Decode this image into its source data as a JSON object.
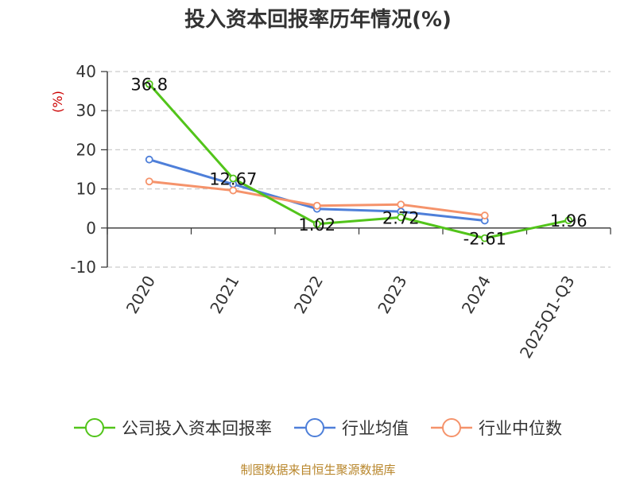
{
  "chart_data": {
    "type": "line",
    "title": "投入资本回报率历年情况(%)",
    "ylabel": "(%)",
    "xlabel": "",
    "categories": [
      "2020",
      "2021",
      "2022",
      "2023",
      "2024",
      "2025Q1-Q3"
    ],
    "ylim": [
      -10,
      40
    ],
    "yticks": [
      -10,
      0,
      10,
      20,
      30,
      40
    ],
    "grid": true,
    "legend_position": "bottom",
    "series": [
      {
        "name": "公司投入资本回报率",
        "color": "#52c41a",
        "values": [
          36.8,
          12.67,
          1.02,
          2.72,
          -2.61,
          1.96
        ],
        "labels": [
          "36.8",
          "12.67",
          "1.02",
          "2.72",
          "-2.61",
          "1.96"
        ]
      },
      {
        "name": "行业均值",
        "color": "#4e7fd9",
        "values": [
          17.5,
          11.2,
          4.9,
          4.2,
          1.9,
          null
        ]
      },
      {
        "name": "行业中位数",
        "color": "#f5936b",
        "values": [
          11.9,
          9.6,
          5.7,
          6.0,
          3.2,
          null
        ]
      }
    ],
    "source": "制图数据来自恒生聚源数据库"
  }
}
